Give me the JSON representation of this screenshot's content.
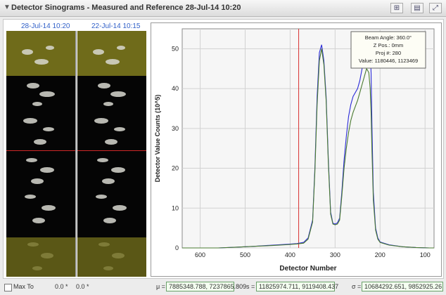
{
  "window": {
    "title": "Detector Sinograms - Measured and Reference 28-Jul-14  10:20",
    "collapse_icon": "triangle-down-icon",
    "buttons": [
      {
        "name": "fit-view-button",
        "icon": "fit-icon"
      },
      {
        "name": "print-button",
        "icon": "printer-icon"
      },
      {
        "name": "expand-button",
        "icon": "expand-icon"
      }
    ]
  },
  "sinograms": {
    "left_label": "28-Jul-14  10:20",
    "right_label": "22-Jul-14  10:15",
    "band_color": "#6f6b1a",
    "marker_color": "#d02828"
  },
  "tooltip": {
    "line1": "Beam Angle: 360.0°",
    "line2": "Z Pos.: 0mm",
    "line3": "Proj #: 280",
    "line4": "Value: 1180446, 1123469"
  },
  "chart_data": {
    "type": "line",
    "xlabel": "Detector Number",
    "ylabel": "Detector Value Counts (10^5)",
    "xlim": [
      640,
      80
    ],
    "ylim": [
      0,
      55
    ],
    "x_ticks": [
      600,
      500,
      400,
      300,
      200,
      100
    ],
    "y_ticks": [
      0,
      10,
      20,
      30,
      40,
      50
    ],
    "grid": true,
    "marker_x": 381,
    "series": [
      {
        "color": "#2b2bd8",
        "x": [
          640,
          600,
          560,
          520,
          480,
          440,
          410,
          385,
          370,
          360,
          350,
          345,
          340,
          335,
          330,
          325,
          320,
          315,
          310,
          305,
          300,
          295,
          290,
          285,
          280,
          275,
          270,
          265,
          260,
          250,
          245,
          240,
          235,
          230,
          225,
          222,
          220,
          218,
          215,
          210,
          205,
          200,
          180,
          150,
          120,
          90,
          80
        ],
        "y": [
          0,
          0,
          0,
          0.2,
          0.4,
          0.7,
          0.9,
          1.1,
          1.4,
          2.5,
          7,
          20,
          38,
          49,
          51,
          47,
          38,
          22,
          9,
          6.2,
          6,
          6.3,
          7.5,
          14,
          22,
          28,
          33,
          36,
          38,
          40,
          42,
          45,
          49,
          53,
          54,
          50,
          44,
          30,
          14,
          5,
          2.5,
          1.5,
          0.8,
          0.3,
          0.1,
          0,
          0
        ]
      },
      {
        "color": "#4a7a30",
        "x": [
          640,
          600,
          560,
          520,
          480,
          440,
          410,
          385,
          370,
          360,
          350,
          345,
          340,
          335,
          330,
          325,
          320,
          315,
          310,
          305,
          300,
          295,
          290,
          285,
          280,
          275,
          270,
          265,
          260,
          250,
          245,
          240,
          235,
          230,
          225,
          222,
          220,
          218,
          215,
          210,
          205,
          200,
          180,
          150,
          120,
          90,
          80
        ],
        "y": [
          0,
          0,
          0,
          0.2,
          0.4,
          0.6,
          0.8,
          1,
          1.2,
          2.2,
          6.5,
          19,
          36,
          47,
          50,
          46,
          37,
          21,
          8.5,
          6,
          5.8,
          6,
          7,
          13,
          20,
          25,
          29,
          32,
          34,
          37,
          39,
          41,
          43,
          45,
          44,
          40,
          34,
          24,
          12,
          4.5,
          2.2,
          1.4,
          0.7,
          0.3,
          0.1,
          0,
          0
        ]
      }
    ]
  },
  "bottom_bar": {
    "checkbox_label": "Max To",
    "range_from": "0.0 *",
    "range_to": "0.0 *",
    "mu_label": "μ =",
    "mu_value": "7885348.788,  7237865.809",
    "s_label": "s =",
    "s_value": "11825974.711,  9119408.437",
    "sigma_label": "σ =",
    "sigma_value": "10684292.651,  9852925.26"
  }
}
